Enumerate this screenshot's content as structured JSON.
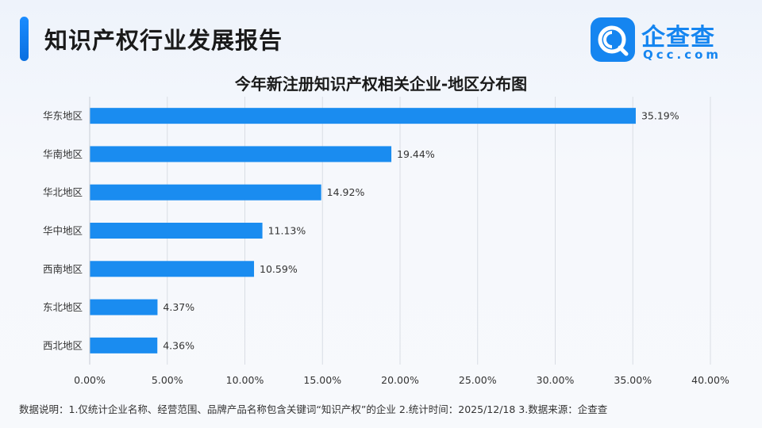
{
  "header": {
    "title": "知识产权行业发展报告"
  },
  "logo": {
    "name": "企查查",
    "domain": "Qcc.com",
    "icon": "qcc-logo-icon",
    "brand_color": "#1585f0"
  },
  "chart_data": {
    "type": "bar",
    "orientation": "horizontal",
    "title": "今年新注册知识产权相关企业-地区分布图",
    "categories": [
      "华东地区",
      "华南地区",
      "华北地区",
      "华中地区",
      "西南地区",
      "东北地区",
      "西北地区"
    ],
    "values": [
      35.19,
      19.44,
      14.92,
      11.13,
      10.59,
      4.37,
      4.36
    ],
    "value_labels": [
      "35.19%",
      "19.44%",
      "14.92%",
      "11.13%",
      "10.59%",
      "4.37%",
      "4.36%"
    ],
    "xlim": [
      0,
      40
    ],
    "x_ticks": [
      0,
      5,
      10,
      15,
      20,
      25,
      30,
      35,
      40
    ],
    "x_tick_labels": [
      "0.00%",
      "5.00%",
      "10.00%",
      "15.00%",
      "20.00%",
      "25.00%",
      "30.00%",
      "35.00%",
      "40.00%"
    ],
    "grid": "vertical",
    "bar_color": "#1a8cf0",
    "xlabel": "",
    "ylabel": ""
  },
  "footer": {
    "note": "数据说明：1.仅统计企业名称、经营范围、品牌产品名称包含关键词“知识产权”的企业  2.统计时间：2025/12/18   3.数据来源：企查查"
  }
}
